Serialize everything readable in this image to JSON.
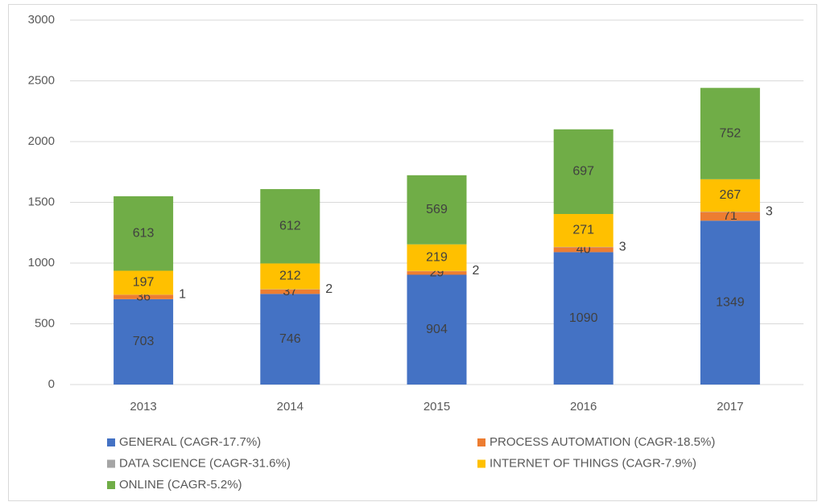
{
  "chart_data": {
    "type": "stacked_bar",
    "categories": [
      "2013",
      "2014",
      "2015",
      "2016",
      "2017"
    ],
    "series": [
      {
        "name": "GENERAL (CAGR-17.7%)",
        "color": "#4472c4",
        "values": [
          703,
          746,
          904,
          1090,
          1349
        ]
      },
      {
        "name": "PROCESS AUTOMATION (CAGR-18.5%)",
        "color": "#ed7d31",
        "values": [
          36,
          37,
          29,
          40,
          71
        ]
      },
      {
        "name": "DATA SCIENCE (CAGR-31.6%)",
        "color": "#a5a5a5",
        "values": [
          1,
          2,
          2,
          3,
          3
        ]
      },
      {
        "name": "INTERNET OF THINGS (CAGR-7.9%)",
        "color": "#ffc000",
        "values": [
          197,
          212,
          219,
          271,
          267
        ]
      },
      {
        "name": "ONLINE (CAGR-5.2%)",
        "color": "#70ad47",
        "values": [
          613,
          612,
          569,
          697,
          752
        ]
      }
    ],
    "ylim": [
      0,
      3000
    ],
    "yticks": [
      0,
      500,
      1000,
      1500,
      2000,
      2500,
      3000
    ],
    "grid": true,
    "legend": "bottom"
  }
}
